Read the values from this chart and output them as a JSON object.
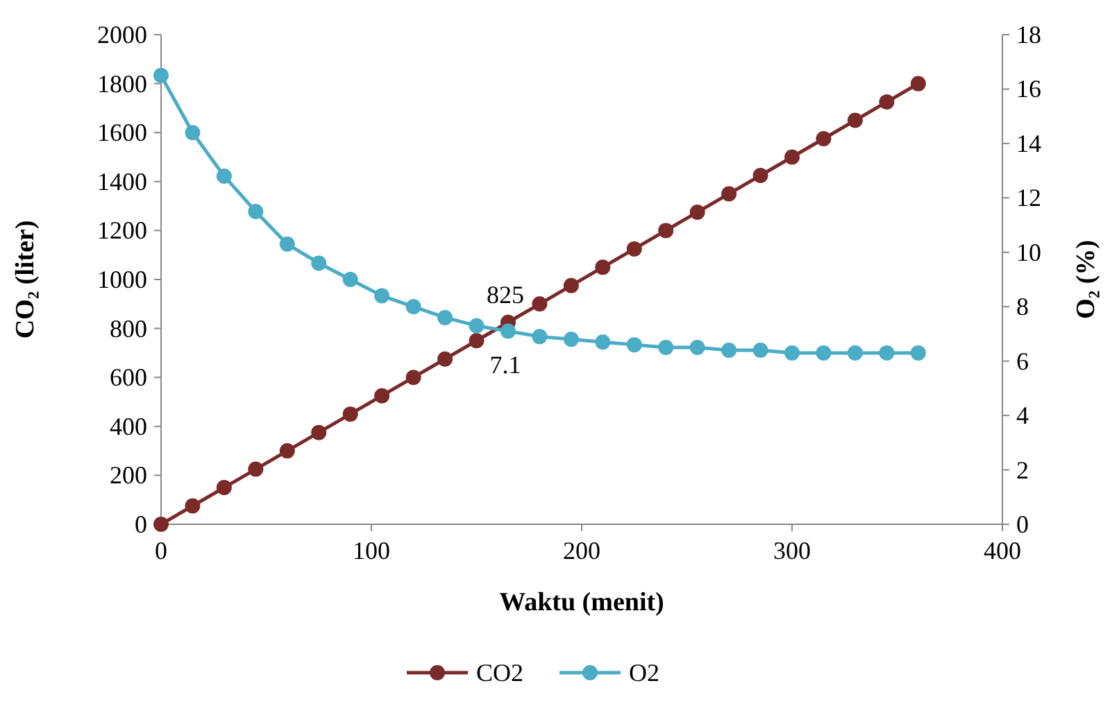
{
  "chart_data": {
    "type": "line",
    "xlabel": "Waktu (menit)",
    "ylabel": "CO₂ (liter)",
    "y2label": "O₂ (%)",
    "x": [
      0,
      15,
      30,
      45,
      60,
      75,
      90,
      105,
      120,
      135,
      150,
      165,
      180,
      195,
      210,
      225,
      240,
      255,
      270,
      285,
      300,
      315,
      330,
      345,
      360
    ],
    "xlim": [
      0,
      400
    ],
    "xticks": [
      0,
      100,
      200,
      300,
      400
    ],
    "ylim": [
      0,
      2000
    ],
    "yticks": [
      0,
      200,
      400,
      600,
      800,
      1000,
      1200,
      1400,
      1600,
      1800,
      2000
    ],
    "y2lim": [
      0,
      18
    ],
    "y2ticks": [
      0,
      2,
      4,
      6,
      8,
      10,
      12,
      14,
      16,
      18
    ],
    "series": [
      {
        "name": "CO2",
        "color": "#7b2a2a",
        "values": [
          0,
          75,
          150,
          225,
          300,
          375,
          450,
          525,
          600,
          675,
          750,
          825,
          900,
          975,
          1050,
          1125,
          1200,
          1275,
          1350,
          1425,
          1500,
          1575,
          1650,
          1725,
          1800
        ],
        "value_labels": [
          null,
          null,
          null,
          null,
          null,
          null,
          null,
          null,
          null,
          null,
          null,
          "825",
          null,
          null,
          null,
          null,
          null,
          null,
          null,
          null,
          null,
          null,
          null,
          null,
          null
        ]
      },
      {
        "name": "O2",
        "color": "#4bacc6",
        "axis": "y2",
        "values": [
          16.5,
          14.4,
          12.8,
          11.5,
          10.3,
          9.6,
          9.0,
          8.4,
          8.0,
          7.6,
          7.3,
          7.1,
          6.9,
          6.8,
          6.7,
          6.6,
          6.5,
          6.5,
          6.4,
          6.4,
          6.3,
          6.3,
          6.3,
          6.3,
          6.3
        ],
        "value_labels": [
          null,
          null,
          null,
          null,
          null,
          null,
          null,
          null,
          null,
          null,
          null,
          "7.1",
          null,
          null,
          null,
          null,
          null,
          null,
          null,
          null,
          null,
          null,
          null,
          null,
          null
        ]
      }
    ],
    "marker": "circle",
    "legend": "bottom",
    "grid": false
  }
}
